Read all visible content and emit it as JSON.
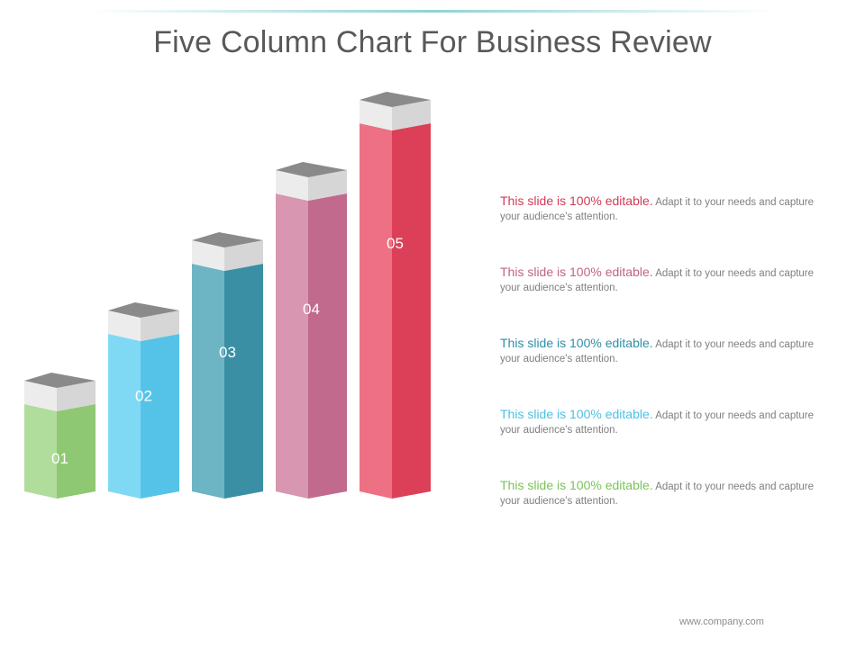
{
  "title": "Five Column Chart For Business Review",
  "footer": "www.company.com",
  "chart_data": {
    "type": "bar",
    "title": "Five Column Chart For Business Review",
    "categories": [
      "01",
      "02",
      "03",
      "04",
      "05"
    ],
    "values": [
      1,
      2,
      3,
      4,
      5
    ],
    "colors": [
      {
        "light": "#b1dd9c",
        "dark": "#8fc872"
      },
      {
        "light": "#7fd9f5",
        "dark": "#55c3e7"
      },
      {
        "light": "#6db4c4",
        "dark": "#3a8fa4"
      },
      {
        "light": "#d896b0",
        "dark": "#c16a8e"
      },
      {
        "light": "#ee7084",
        "dark": "#dc4058"
      }
    ]
  },
  "notes": [
    {
      "lead": "This slide is 100% editable.",
      "body": "Adapt it to your needs and capture your audience's attention.",
      "color": "#d23a56"
    },
    {
      "lead": "This slide is 100% editable.",
      "body": "Adapt it to your needs and capture your audience's attention.",
      "color": "#c06386"
    },
    {
      "lead": "This slide is 100% editable.",
      "body": "Adapt it to your needs and capture your audience's attention.",
      "color": "#2f8fa6"
    },
    {
      "lead": "This slide is 100% editable.",
      "body": "Adapt it to your needs and capture your audience's attention.",
      "color": "#4cc0e4"
    },
    {
      "lead": "This slide is 100% editable.",
      "body": "Adapt it to your needs and capture your audience's attention.",
      "color": "#7bc25a"
    }
  ]
}
